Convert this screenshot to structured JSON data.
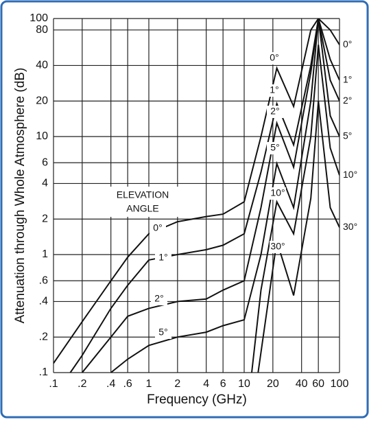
{
  "chart_data": {
    "type": "line",
    "xlog": true,
    "ylog": true,
    "grid": true,
    "xlabel": "Frequency (GHz)",
    "ylabel": "Attenuation through Whole Atmosphere (dB)",
    "annotation": [
      "ELEVATION",
      "ANGLE"
    ],
    "xlim": [
      0.1,
      100
    ],
    "ylim": [
      0.1,
      100
    ],
    "xticks": [
      {
        "value": 0.1,
        "label": ".1"
      },
      {
        "value": 0.2,
        "label": ".2"
      },
      {
        "value": 0.4,
        "label": ".4"
      },
      {
        "value": 0.6,
        "label": ".6"
      },
      1,
      2,
      4,
      6,
      10,
      20,
      40,
      60,
      100
    ],
    "yticks": [
      {
        "value": 0.1,
        "label": ".1"
      },
      {
        "value": 0.2,
        "label": ".2"
      },
      {
        "value": 0.4,
        "label": ".4"
      },
      {
        "value": 0.6,
        "label": ".6"
      },
      1,
      2,
      4,
      6,
      10,
      20,
      40,
      80,
      100
    ],
    "series": [
      {
        "name": "0°",
        "color": "#111",
        "x": [
          0.1,
          0.2,
          0.4,
          0.6,
          1,
          2,
          4,
          6,
          10,
          15,
          22,
          33,
          50,
          60,
          80,
          100
        ],
        "values": [
          0.12,
          0.27,
          0.6,
          0.95,
          1.5,
          1.9,
          2.1,
          2.2,
          2.8,
          10,
          38,
          18,
          80,
          100,
          80,
          60
        ]
      },
      {
        "name": "1°",
        "color": "#111",
        "x": [
          0.15,
          0.2,
          0.4,
          0.6,
          1,
          2,
          4,
          6,
          10,
          15,
          22,
          33,
          50,
          60,
          80,
          100
        ],
        "values": [
          0.1,
          0.14,
          0.35,
          0.55,
          0.9,
          1.0,
          1.1,
          1.2,
          1.5,
          5,
          19,
          8.5,
          40,
          100,
          45,
          30
        ]
      },
      {
        "name": "2°",
        "color": "#111",
        "x": [
          0.2,
          0.4,
          0.6,
          1,
          2,
          4,
          6,
          10,
          15,
          22,
          33,
          50,
          60,
          80,
          100
        ],
        "values": [
          0.1,
          0.2,
          0.3,
          0.35,
          0.4,
          0.42,
          0.5,
          0.6,
          2.5,
          13,
          5.5,
          35,
          100,
          30,
          20
        ]
      },
      {
        "name": "5°",
        "color": "#111",
        "x": [
          0.4,
          0.6,
          1,
          2,
          4,
          6,
          10,
          15,
          22,
          33,
          50,
          60,
          80,
          100
        ],
        "values": [
          0.1,
          0.13,
          0.17,
          0.2,
          0.22,
          0.25,
          0.28,
          1,
          5.9,
          2.5,
          20,
          100,
          15,
          10
        ]
      },
      {
        "name": "10°",
        "color": "#111",
        "x": [
          12,
          15,
          22,
          33,
          50,
          60,
          80,
          100
        ],
        "values": [
          0.1,
          0.5,
          2.8,
          1.5,
          10,
          60,
          8,
          4.7
        ]
      },
      {
        "name": "30°",
        "color": "#111",
        "x": [
          14,
          17,
          22,
          33,
          50,
          60,
          80,
          100
        ],
        "values": [
          0.1,
          0.3,
          1.3,
          0.45,
          3,
          20,
          2.5,
          1.7
        ]
      }
    ]
  }
}
